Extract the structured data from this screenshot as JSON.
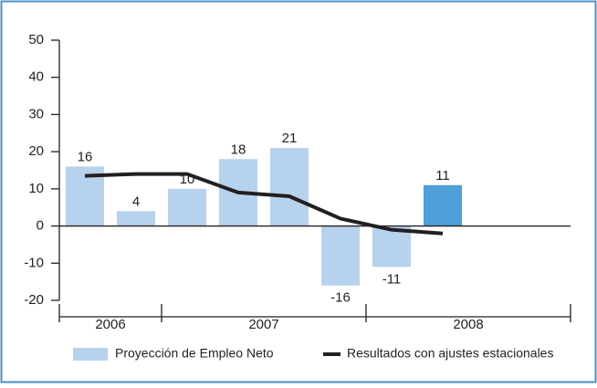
{
  "chart_data": {
    "type": "bar",
    "categories": [
      null,
      null,
      null,
      null,
      null,
      null,
      null,
      null,
      null,
      null
    ],
    "groups": [
      {
        "label": "2006",
        "count": 2
      },
      {
        "label": "2007",
        "count": 4
      },
      {
        "label": "2008",
        "count": 4
      }
    ],
    "series": [
      {
        "name": "Proyección de Empleo Neto",
        "type": "bar",
        "color": "#b7d2ec",
        "colors": [
          "#b7d2ec",
          "#b7d2ec",
          "#b7d2ec",
          "#b7d2ec",
          "#b7d2ec",
          "#b7d2ec",
          "#b7d2ec",
          "#4f9fd8",
          null,
          null
        ],
        "values": [
          16,
          4,
          10,
          18,
          21,
          -16,
          -11,
          11,
          null,
          null
        ]
      },
      {
        "name": "Resultados con ajustes estacionales",
        "type": "line",
        "color": "#231f20",
        "values": [
          13.5,
          14,
          14,
          9,
          8,
          2,
          -1,
          -2,
          null,
          null
        ]
      }
    ],
    "ylim": [
      -20,
      50
    ],
    "yticks": [
      -20,
      -10,
      0,
      10,
      20,
      30,
      40,
      50
    ]
  }
}
